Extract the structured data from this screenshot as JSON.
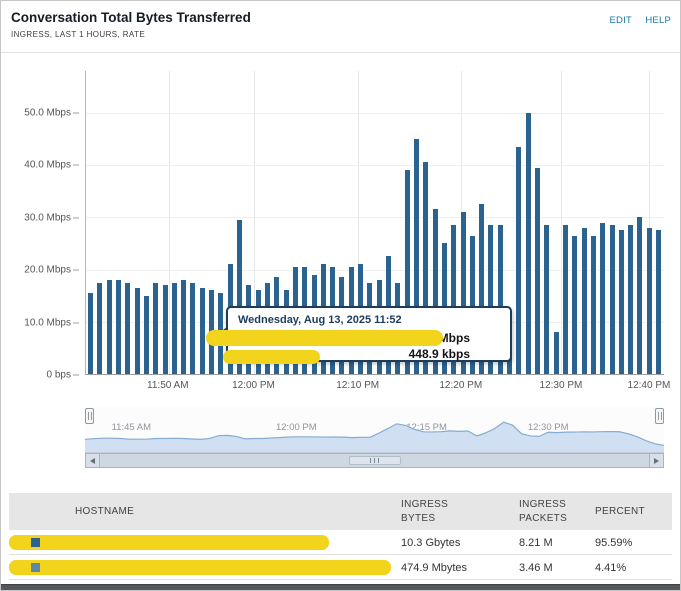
{
  "widget": {
    "title": "Conversation Total Bytes Transferred",
    "subtitle": "INGRESS, LAST 1 HOURS, RATE",
    "links": {
      "edit": "EDIT",
      "help": "HELP"
    }
  },
  "chart_data": [
    {
      "type": "bar",
      "name": "conversation-ingress-rate",
      "title": "Conversation Total Bytes Transferred",
      "unit": "Mbps",
      "ylim": [
        0,
        58
      ],
      "grid": true,
      "y_ticks": [
        "50.0 Mbps",
        "40.0 Mbps",
        "30.0 Mbps",
        "20.0 Mbps",
        "10.0 Mbps",
        "0 bps"
      ],
      "y_tick_values": [
        50,
        40,
        30,
        20,
        10,
        0
      ],
      "x_ticks": [
        "11:50 AM",
        "12:00 PM",
        "12:10 PM",
        "12:20 PM",
        "12:30 PM",
        "12:40 PM"
      ],
      "values_mbps": [
        15.5,
        17.5,
        18,
        18,
        17.5,
        16.5,
        15,
        17.5,
        17,
        17.5,
        18,
        17.5,
        16.5,
        16,
        15.5,
        21,
        29.5,
        17,
        16,
        17.5,
        18.5,
        16,
        20.5,
        20.5,
        19,
        21,
        20.5,
        18.5,
        20.5,
        21,
        17.5,
        18,
        22.5,
        17.5,
        39,
        45,
        40.5,
        31.5,
        25,
        28.5,
        31,
        26.5,
        32.5,
        28.5,
        28.5,
        8,
        43.5,
        50,
        39.5,
        28.5,
        8,
        28.5,
        26.5,
        28,
        26.5,
        29,
        28.5,
        27.5,
        28.5,
        30,
        28,
        27.5
      ]
    },
    {
      "type": "area",
      "name": "overview-timeline",
      "unit": "Mbps",
      "ylim": [
        0,
        58
      ],
      "x_ticks": [
        "11:45 AM",
        "12:00 PM",
        "12:15 PM",
        "12:30 PM"
      ],
      "values_mbps": [
        15.5,
        17.5,
        18,
        18,
        17.5,
        16.5,
        15,
        17.5,
        17,
        17.5,
        18,
        17.5,
        16.5,
        16,
        15.5,
        21,
        29.5,
        17,
        16,
        17.5,
        18.5,
        16,
        20.5,
        20.5,
        19,
        21,
        20.5,
        18.5,
        20.5,
        21,
        17.5,
        18,
        22.5,
        17.5,
        39,
        45,
        40.5,
        31.5,
        25,
        28.5,
        31,
        26.5,
        32.5,
        28.5,
        28.5,
        8,
        43.5,
        50,
        39.5,
        28.5,
        8,
        28.5,
        26.5,
        28,
        26.5,
        29,
        28.5,
        27.5,
        28.5,
        30,
        28,
        27.5,
        20,
        13,
        8,
        5
      ]
    }
  ],
  "tooltip": {
    "date": "Wednesday, Aug 13, 2025 11:52",
    "rows": [
      {
        "label_redacted": true,
        "value": ".3 Mbps"
      },
      {
        "label_redacted": true,
        "value": "448.9 kbps"
      }
    ]
  },
  "table": {
    "headers": [
      "HOSTNAME",
      "INGRESS BYTES",
      "INGRESS PACKETS",
      "PERCENT"
    ],
    "rows": [
      {
        "hostname_redacted": true,
        "ingress_bytes": "10.3 Gbytes",
        "ingress_packets": "8.21 M",
        "percent": "95.59%"
      },
      {
        "hostname_redacted": true,
        "ingress_bytes": "474.9 Mbytes",
        "ingress_packets": "3.46 M",
        "percent": "4.41%"
      }
    ]
  },
  "colors": {
    "bar": "#2a6390",
    "link": "#1879a0",
    "redaction": "#f2d41c",
    "tooltip_border": "#1d3c5c",
    "overview_fill": "#c9dcf0",
    "overview_stroke": "#84abd2",
    "series": [
      "#2a6390",
      "#5f87a8"
    ],
    "bottom_bar": "#54575c"
  }
}
